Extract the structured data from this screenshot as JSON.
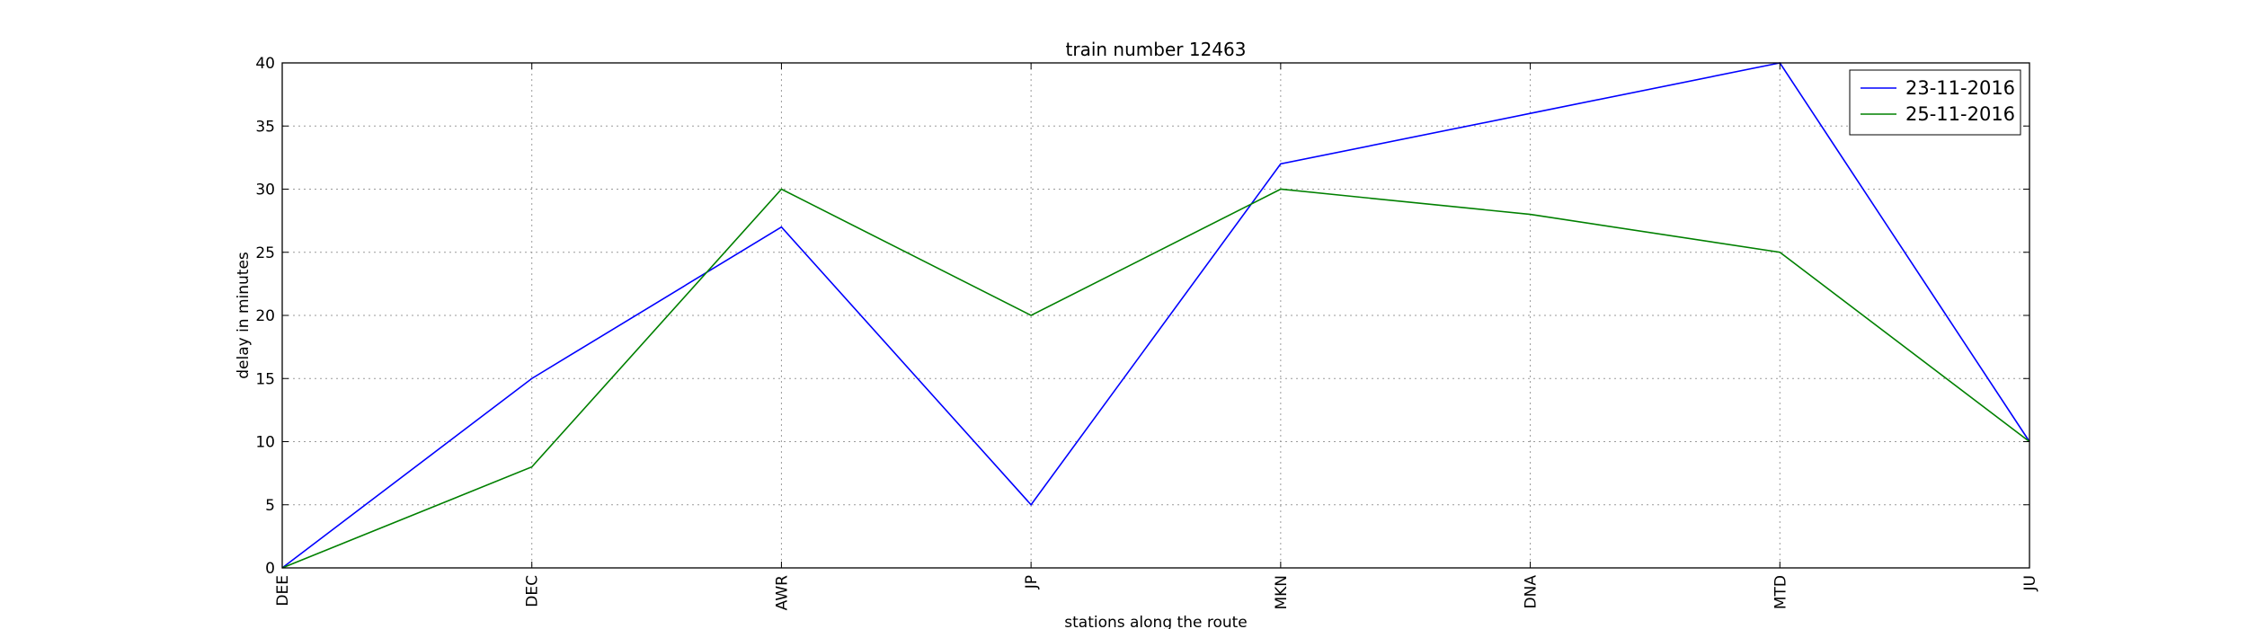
{
  "chart_data": {
    "type": "line",
    "title": "train number 12463",
    "xlabel": "stations along the route",
    "ylabel": "delay in minutes",
    "categories": [
      "DEE",
      "DEC",
      "AWR",
      "JP",
      "MKN",
      "DNA",
      "MTD",
      "JU"
    ],
    "ylim": [
      0,
      40
    ],
    "yticks": [
      0,
      5,
      10,
      15,
      20,
      25,
      30,
      35,
      40
    ],
    "grid": true,
    "legend_position": "top-right",
    "series": [
      {
        "name": "23-11-2016",
        "color": "#0000ff",
        "values": [
          0,
          15,
          27,
          5,
          32,
          36,
          40,
          10
        ]
      },
      {
        "name": "25-11-2016",
        "color": "#008000",
        "values": [
          0,
          8,
          30,
          20,
          30,
          28,
          25,
          10
        ]
      }
    ]
  }
}
